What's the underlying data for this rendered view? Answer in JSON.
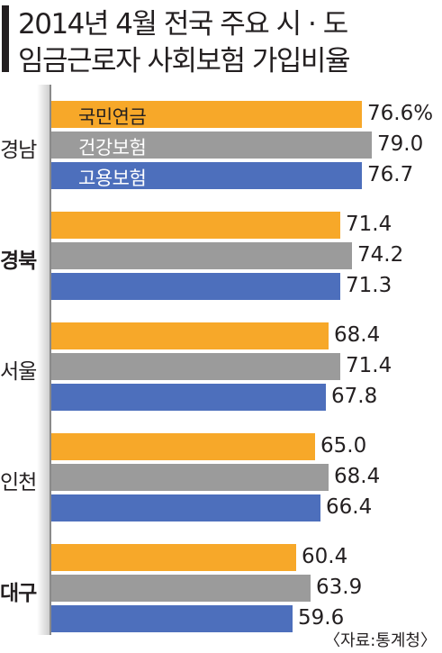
{
  "title": {
    "line1": "2014년 4월 전국 주요 시 · 도",
    "line2": "임금근로자 사회보험 가입비율"
  },
  "source": "〈자료:통계청〉",
  "chart_data": {
    "type": "bar",
    "orientation": "horizontal",
    "categories": [
      "경남",
      "경북",
      "서울",
      "인천",
      "대구"
    ],
    "bold_categories": [
      "경북",
      "대구"
    ],
    "series": [
      {
        "name": "국민연금",
        "color": "#f7a829",
        "values": [
          76.6,
          71.4,
          68.4,
          65.0,
          60.4
        ],
        "labels": [
          "76.6%",
          "71.4",
          "68.4",
          "65.0",
          "60.4"
        ]
      },
      {
        "name": "건강보험",
        "color": "#9b9b9b",
        "values": [
          79.0,
          74.2,
          71.4,
          68.4,
          63.9
        ],
        "labels": [
          "79.0",
          "74.2",
          "71.4",
          "68.4",
          "63.9"
        ]
      },
      {
        "name": "고용보험",
        "color": "#4d6fbc",
        "values": [
          76.7,
          71.3,
          67.8,
          66.4,
          59.6
        ],
        "labels": [
          "76.7",
          "71.3",
          "67.8",
          "66.4",
          "59.6"
        ]
      }
    ],
    "xlim": [
      0,
      100
    ],
    "grid": false,
    "legend": "inside-first-group"
  }
}
